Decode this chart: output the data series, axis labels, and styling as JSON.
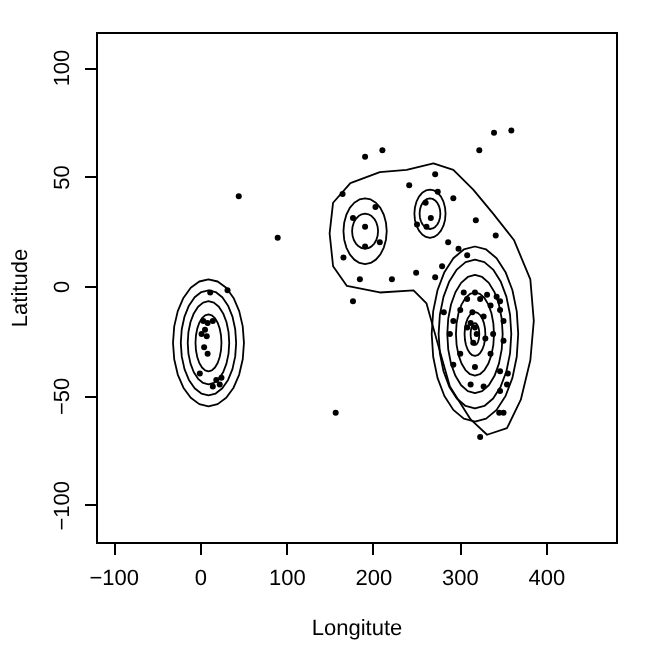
{
  "chart_data": {
    "type": "scatter",
    "xlabel": "Longitute",
    "ylabel": "Latitude",
    "xlim": [
      -120,
      481
    ],
    "ylim": [
      -117,
      116
    ],
    "xticks": [
      -100,
      0,
      100,
      200,
      300,
      400
    ],
    "yticks": [
      -100,
      -50,
      0,
      50,
      100
    ],
    "grid": false,
    "series": [
      {
        "type": "scatter",
        "marker": "circle",
        "color": "#000000",
        "x": [
          45,
          90,
          12,
          32,
          4,
          9,
          15,
          6,
          2,
          8,
          5,
          9,
          0,
          19,
          23,
          25,
          15,
          157,
          191,
          211,
          323,
          340,
          360,
          165,
          272,
          242,
          275,
          293,
          261,
          203,
          177,
          191,
          267,
          251,
          262,
          319,
          208,
          191,
          342,
          166,
          287,
          299,
          185,
          222,
          250,
          280,
          309,
          177,
          272,
          305,
          318,
          332,
          343,
          309,
          324,
          347,
          301,
          315,
          313,
          318,
          320,
          309,
          328,
          336,
          347,
          351,
          282,
          293,
          289,
          330,
          339,
          351,
          316,
          301,
          293,
          318,
          336,
          347,
          356,
          313,
          328,
          347,
          355,
          351,
          346,
          324
        ],
        "values": [
          41,
          22,
          -3,
          -2,
          -16,
          -17,
          -16,
          -20,
          -22,
          -23,
          -28,
          -31,
          -40,
          -43,
          -45,
          -42,
          -46,
          -58,
          59,
          62,
          62,
          70,
          71,
          42,
          51,
          46,
          43,
          40,
          38,
          36,
          31,
          27,
          31,
          28,
          27,
          30,
          20,
          18,
          23,
          13,
          20,
          17,
          3,
          3,
          6,
          9,
          14,
          -7,
          4,
          -3,
          -3,
          -4,
          -5,
          -6,
          -6,
          -7,
          -11,
          -12,
          -17,
          -19,
          -22,
          -19,
          -14,
          -9,
          -11,
          -16,
          -12,
          -16,
          -22,
          -24,
          -22,
          -25,
          -26,
          -31,
          -36,
          -37,
          -31,
          -39,
          -40,
          -45,
          -46,
          -48,
          -45,
          -58,
          -58,
          -69
        ]
      }
    ]
  }
}
